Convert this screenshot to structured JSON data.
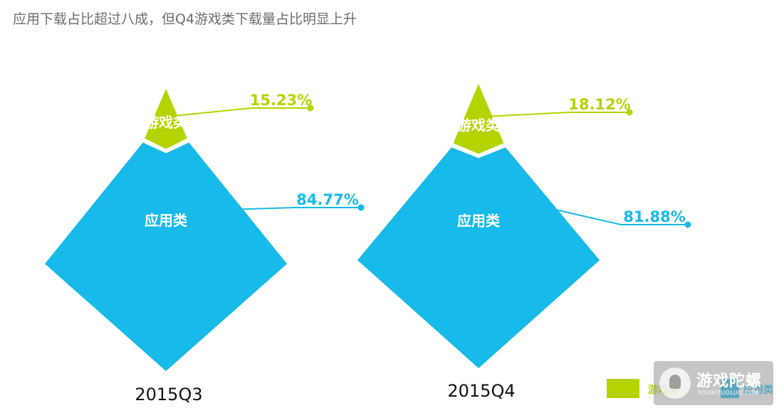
{
  "title": "应用下载占比超过八成，但Q4游戏类下载量占比明显上升",
  "colors": {
    "game": "#b5d300",
    "app": "#17bae8",
    "title_text": "#6d6d6d"
  },
  "chart_data": {
    "type": "pyramid",
    "categories": [
      "2015Q3",
      "2015Q4"
    ],
    "series": [
      {
        "name": "游戏类",
        "values": [
          15.23,
          18.12
        ],
        "labels": [
          "15.23%",
          "18.12%"
        ],
        "color": "#b5d300"
      },
      {
        "name": "应用类",
        "values": [
          84.77,
          81.88
        ],
        "labels": [
          "84.77%",
          "81.88%"
        ],
        "color": "#17bae8"
      }
    ],
    "legend": {
      "position": "bottom-right",
      "entries": [
        "游戏类",
        "应用类"
      ]
    }
  },
  "watermark": {
    "name": "游戏陀螺",
    "domain": "YOUXITUOLUO.COM"
  }
}
